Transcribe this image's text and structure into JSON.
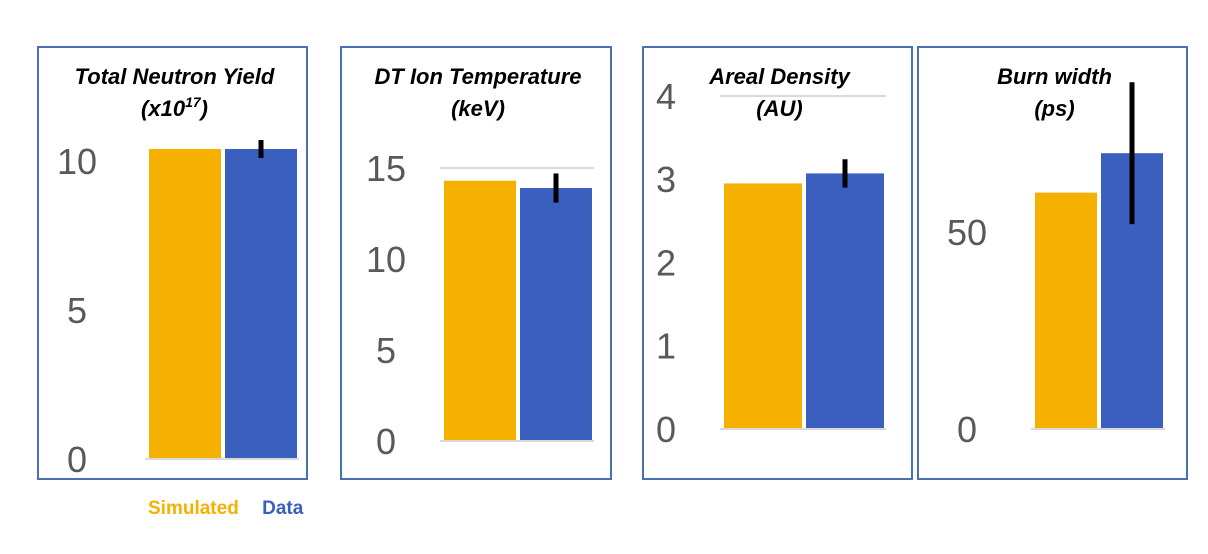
{
  "legend": {
    "simulated_label": "Simulated",
    "data_label": "Data"
  },
  "colors": {
    "simulated": "#F5B000",
    "data": "#3A5FBE",
    "panel_border": "#4A6FB5",
    "error_bar": "#000000",
    "tick_text": "#595959",
    "title_text": "#000000"
  },
  "chart_data": [
    {
      "type": "bar",
      "title_line1": "Total Neutron Yield",
      "title_line2_base": "(x10",
      "title_line2_sup": "17",
      "title_line2_end": ")",
      "ylim": [
        0,
        10.5
      ],
      "yticks": [
        "0",
        "5",
        "10"
      ],
      "ytick_values": [
        0,
        5,
        10
      ],
      "grid": false,
      "series": [
        {
          "name": "Simulated",
          "values": [
            10.4
          ]
        },
        {
          "name": "Data",
          "values": [
            10.4
          ],
          "error": [
            0.3
          ]
        }
      ]
    },
    {
      "type": "bar",
      "title_line1": "DT Ion Temperature",
      "title_line2": "(keV)",
      "ylim": [
        0,
        15
      ],
      "yticks": [
        "0",
        "5",
        "10",
        "15"
      ],
      "ytick_values": [
        0,
        5,
        10,
        15
      ],
      "grid": true,
      "series": [
        {
          "name": "Simulated",
          "values": [
            14.3
          ]
        },
        {
          "name": "Data",
          "values": [
            13.9
          ],
          "error": [
            0.8
          ]
        }
      ]
    },
    {
      "type": "bar",
      "title_line1": "Areal Density",
      "title_line2": "(AU)",
      "ylim": [
        0,
        4
      ],
      "yticks": [
        "0",
        "1",
        "2",
        "3",
        "4"
      ],
      "ytick_values": [
        0,
        1,
        2,
        3,
        4
      ],
      "grid": true,
      "series": [
        {
          "name": "Simulated",
          "values": [
            2.95
          ]
        },
        {
          "name": "Data",
          "values": [
            3.07
          ],
          "error": [
            0.17
          ]
        }
      ]
    },
    {
      "type": "bar",
      "title_line1": "Burn width",
      "title_line2": "(ps)",
      "ylim": [
        0,
        100
      ],
      "yticks": [
        "0",
        "50"
      ],
      "ytick_values": [
        0,
        50
      ],
      "grid": false,
      "series": [
        {
          "name": "Simulated",
          "values": [
            60
          ]
        },
        {
          "name": "Data",
          "values": [
            70
          ],
          "error": [
            18
          ]
        }
      ]
    }
  ]
}
